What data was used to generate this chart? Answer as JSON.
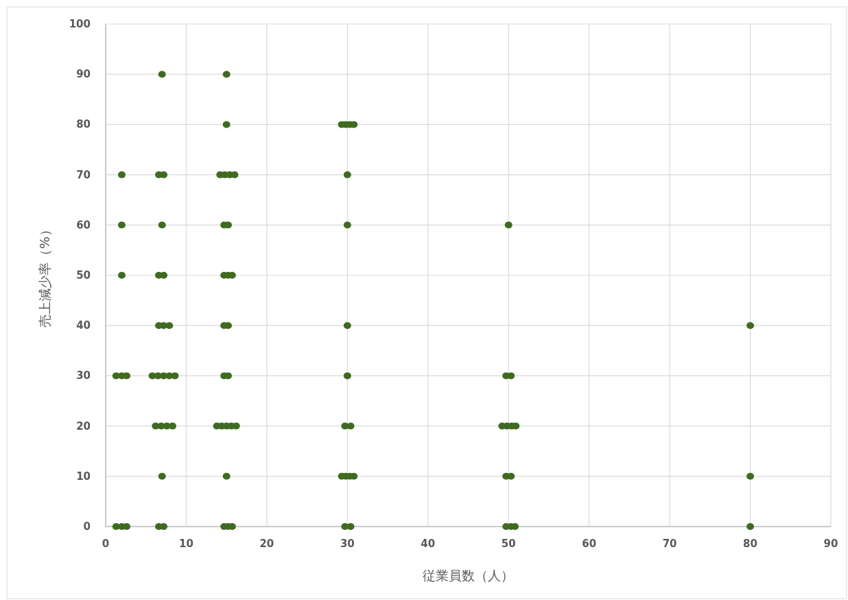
{
  "chart_data": {
    "type": "scatter",
    "xlabel": "従業員数（人）",
    "ylabel": "売上減少率（%）",
    "xlim": [
      0,
      90
    ],
    "xticks": [
      0,
      10,
      20,
      30,
      40,
      50,
      60,
      70,
      80,
      90
    ],
    "ylim": [
      0,
      100
    ],
    "yticks": [
      0,
      10,
      20,
      30,
      40,
      50,
      60,
      70,
      80,
      90,
      100
    ],
    "grid": true,
    "marker": "circle",
    "series": [
      {
        "color": "#3f6b21",
        "x": [
          2,
          2,
          2,
          1.3,
          2,
          2.6,
          1.3,
          2,
          2.6,
          7,
          6.6,
          7.2,
          7,
          6.6,
          7.2,
          6.6,
          7.2,
          7.9,
          5.8,
          6.5,
          7.2,
          7.9,
          8.6,
          6.2,
          6.9,
          7.6,
          8.3,
          7,
          6.6,
          7.2,
          15,
          15,
          14.2,
          14.8,
          15.4,
          16,
          14.7,
          15.2,
          14.7,
          15.2,
          15.7,
          14.7,
          15.2,
          14.7,
          15.2,
          13.8,
          14.4,
          15,
          15.6,
          16.2,
          15,
          14.7,
          15.2,
          15.7,
          29.3,
          29.8,
          30.3,
          30.8,
          30,
          30,
          30,
          30,
          29.7,
          30.4,
          29.3,
          29.8,
          30.3,
          30.8,
          29.7,
          30.4,
          50,
          49.7,
          50.3,
          49.2,
          49.8,
          50.4,
          50.9,
          49.7,
          50.3,
          49.7,
          50.3,
          50.8,
          80,
          80,
          80
        ],
        "values": [
          70,
          60,
          50,
          30,
          30,
          30,
          0,
          0,
          0,
          90,
          70,
          70,
          60,
          50,
          50,
          40,
          40,
          40,
          30,
          30,
          30,
          30,
          30,
          20,
          20,
          20,
          20,
          10,
          0,
          0,
          90,
          80,
          70,
          70,
          70,
          70,
          60,
          60,
          50,
          50,
          50,
          40,
          40,
          30,
          30,
          20,
          20,
          20,
          20,
          20,
          10,
          0,
          0,
          0,
          80,
          80,
          80,
          80,
          70,
          60,
          40,
          30,
          20,
          20,
          10,
          10,
          10,
          10,
          0,
          0,
          60,
          30,
          30,
          20,
          20,
          20,
          20,
          10,
          10,
          0,
          0,
          0,
          40,
          10,
          0
        ]
      }
    ]
  }
}
